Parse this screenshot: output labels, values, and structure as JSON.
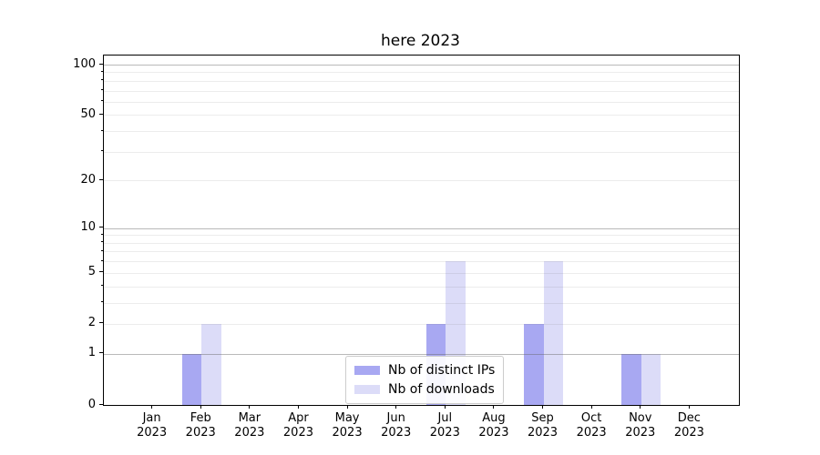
{
  "chart_data": {
    "type": "bar",
    "title": "here 2023",
    "categories": [
      "Jan",
      "Feb",
      "Mar",
      "Apr",
      "May",
      "Jun",
      "Jul",
      "Aug",
      "Sep",
      "Oct",
      "Nov",
      "Dec"
    ],
    "tick_year": "2023",
    "series": [
      {
        "name": "Nb of distinct IPs",
        "color": "#a8a8f2",
        "values": [
          0,
          1,
          0,
          0,
          0,
          0,
          2,
          0,
          2,
          0,
          1,
          0
        ]
      },
      {
        "name": "Nb of downloads",
        "color": "#dcdcf8",
        "values": [
          0,
          2,
          0,
          0,
          0,
          0,
          6,
          0,
          6,
          0,
          1,
          0
        ]
      }
    ],
    "xlabel": "",
    "ylabel": "",
    "yscale": "log1p",
    "yticks": [
      0,
      1,
      2,
      5,
      10,
      20,
      50,
      100
    ],
    "minor_yticks": [
      2,
      3,
      4,
      5,
      6,
      7,
      8,
      9,
      20,
      30,
      40,
      50,
      60,
      70,
      80,
      90
    ],
    "major_gridlines": [
      1,
      10,
      100
    ],
    "ylim": [
      0,
      114
    ],
    "grid": "both",
    "legend_position": "lower center",
    "colors": {
      "axis": "#000000",
      "major_grid": "#b0b0b0",
      "minor_grid": "#e6e6e6",
      "background": "#ffffff"
    }
  }
}
